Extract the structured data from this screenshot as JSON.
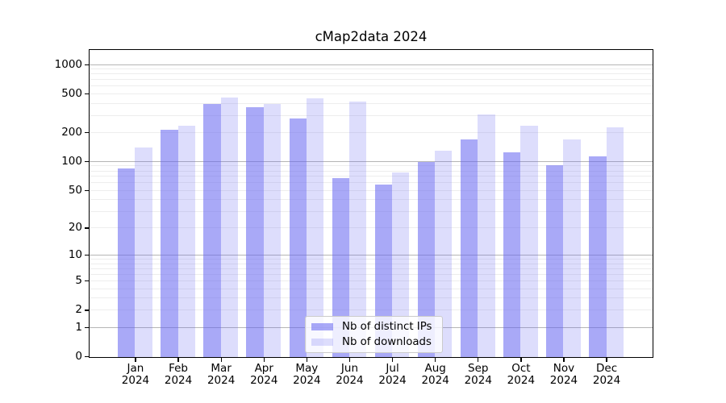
{
  "chart_data": {
    "type": "bar",
    "title": "cMap2data 2024",
    "yscale": "log1p",
    "ymax": 1400,
    "yticks": [
      0,
      1,
      2,
      5,
      10,
      20,
      50,
      100,
      200,
      500,
      1000
    ],
    "categories": [
      "Jan 2024",
      "Feb 2024",
      "Mar 2024",
      "Apr 2024",
      "May 2024",
      "Jun 2024",
      "Jul 2024",
      "Aug 2024",
      "Sep 2024",
      "Oct 2024",
      "Nov 2024",
      "Dec 2024"
    ],
    "series": [
      {
        "name": "Nb of distinct IPs",
        "color": "#6262f0",
        "opacity": 0.55,
        "values": [
          86,
          214,
          395,
          365,
          280,
          68,
          58,
          100,
          170,
          125,
          93,
          114
        ]
      },
      {
        "name": "Nb of downloads",
        "color": "#6262f0",
        "opacity": 0.22,
        "values": [
          140,
          235,
          460,
          400,
          450,
          420,
          78,
          130,
          310,
          238,
          170,
          229
        ]
      }
    ],
    "legend": {
      "position": "inside-bottom-center"
    },
    "grid": {
      "major_values": [
        1,
        10,
        100,
        1000
      ],
      "major_color": "#b5b5b5",
      "minor_per_decade": [
        2,
        3,
        4,
        5,
        6,
        7,
        8,
        9
      ],
      "minor_color": "#ededed"
    },
    "axis_color": "#000000",
    "background": "#ffffff"
  }
}
